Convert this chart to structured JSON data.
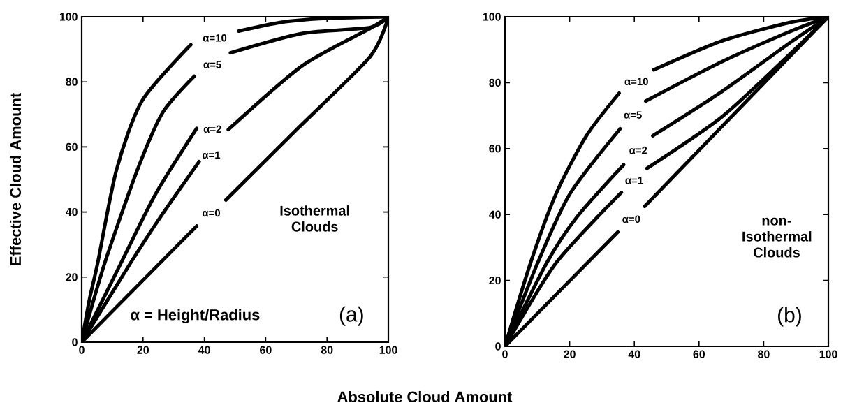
{
  "chart_data": [
    {
      "type": "line",
      "xlabel": "Absolute Cloud Amount",
      "ylabel": "Effective Cloud Amount",
      "xlim": [
        0,
        100
      ],
      "ylim": [
        0,
        100
      ],
      "xticks": [
        0,
        20,
        40,
        60,
        80,
        100
      ],
      "yticks": [
        0,
        20,
        40,
        60,
        80,
        100
      ],
      "series": [
        {
          "name": "α=10",
          "color": "#000000",
          "x": [
            0,
            2.5,
            5.2,
            11.3,
            19.7,
            35.6,
            43,
            51.2,
            65,
            79.7,
            100
          ],
          "values": [
            0,
            13,
            24.3,
            52.8,
            74.2,
            91.4,
            null,
            95.6,
            98.3,
            99.5,
            100
          ]
        },
        {
          "name": "α=5",
          "color": "#000000",
          "x": [
            0,
            7.5,
            18.1,
            26.5,
            36.7,
            42,
            48.5,
            72,
            94,
            100
          ],
          "values": [
            0,
            24.3,
            52.8,
            70.7,
            81.7,
            null,
            88.9,
            94.9,
            96.7,
            100
          ]
        },
        {
          "name": "α=2",
          "color": "#000000",
          "x": [
            0,
            12.8,
            24.2,
            37.5,
            42,
            47.8,
            72,
            94,
            100
          ],
          "values": [
            0,
            24.3,
            45.7,
            65.7,
            null,
            65.3,
            85,
            96.4,
            100
          ]
        },
        {
          "name": "α=1",
          "color": "#000000",
          "x": [
            0,
            15.9,
            25.7,
            38.3
          ],
          "values": [
            0,
            24.3,
            38.5,
            55.5
          ]
        },
        {
          "name": "α=0",
          "color": "#000000",
          "x": [
            0,
            37.5,
            42,
            47,
            70.5,
            94.1,
            100
          ],
          "values": [
            0,
            35.7,
            null,
            43.7,
            65.7,
            87.8,
            100
          ]
        }
      ],
      "annotations": [
        "Isothermal Clouds",
        "α = Height/Radius",
        "(a)"
      ]
    },
    {
      "type": "line",
      "xlim": [
        0,
        100
      ],
      "ylim": [
        0,
        100
      ],
      "xticks": [
        0,
        20,
        40,
        60,
        80,
        100
      ],
      "yticks": [
        0,
        20,
        40,
        60,
        80,
        100
      ],
      "series": [
        {
          "name": "α=10",
          "color": "#000000",
          "x": [
            0,
            7.9,
            15.8,
            25.2,
            35.3,
            40,
            46,
            66.9,
            87.8,
            100
          ],
          "values": [
            0,
            25.3,
            46.3,
            63.9,
            76.8,
            null,
            83.9,
            92.6,
            98.2,
            100
          ]
        },
        {
          "name": "α=5",
          "color": "#000000",
          "x": [
            0,
            10.1,
            20.1,
            35.6,
            40,
            43.5,
            66.9,
            87.8,
            100
          ],
          "values": [
            0,
            25.3,
            46.3,
            66,
            null,
            74.4,
            86.3,
            95.4,
            100
          ]
        },
        {
          "name": "α=2",
          "color": "#000000",
          "x": [
            0,
            12.9,
            22.3,
            36.7,
            41,
            45.7,
            66.9,
            87.8,
            100
          ],
          "values": [
            0,
            25.3,
            39.3,
            55.1,
            null,
            63.9,
            77.2,
            91.9,
            100
          ]
        },
        {
          "name": "α=1",
          "color": "#000000",
          "x": [
            0,
            15.8,
            36,
            40,
            43.9,
            66.9,
            87.8,
            100
          ],
          "values": [
            0,
            25.3,
            46.7,
            null,
            54,
            69.5,
            88.4,
            100
          ]
        },
        {
          "name": "α=0",
          "color": "#000000",
          "x": [
            0,
            34.9,
            39,
            43.2,
            100
          ],
          "values": [
            0,
            34.7,
            null,
            42.5,
            100
          ]
        }
      ],
      "annotations": [
        "non-Isothermal Clouds",
        "(b)"
      ]
    }
  ]
}
